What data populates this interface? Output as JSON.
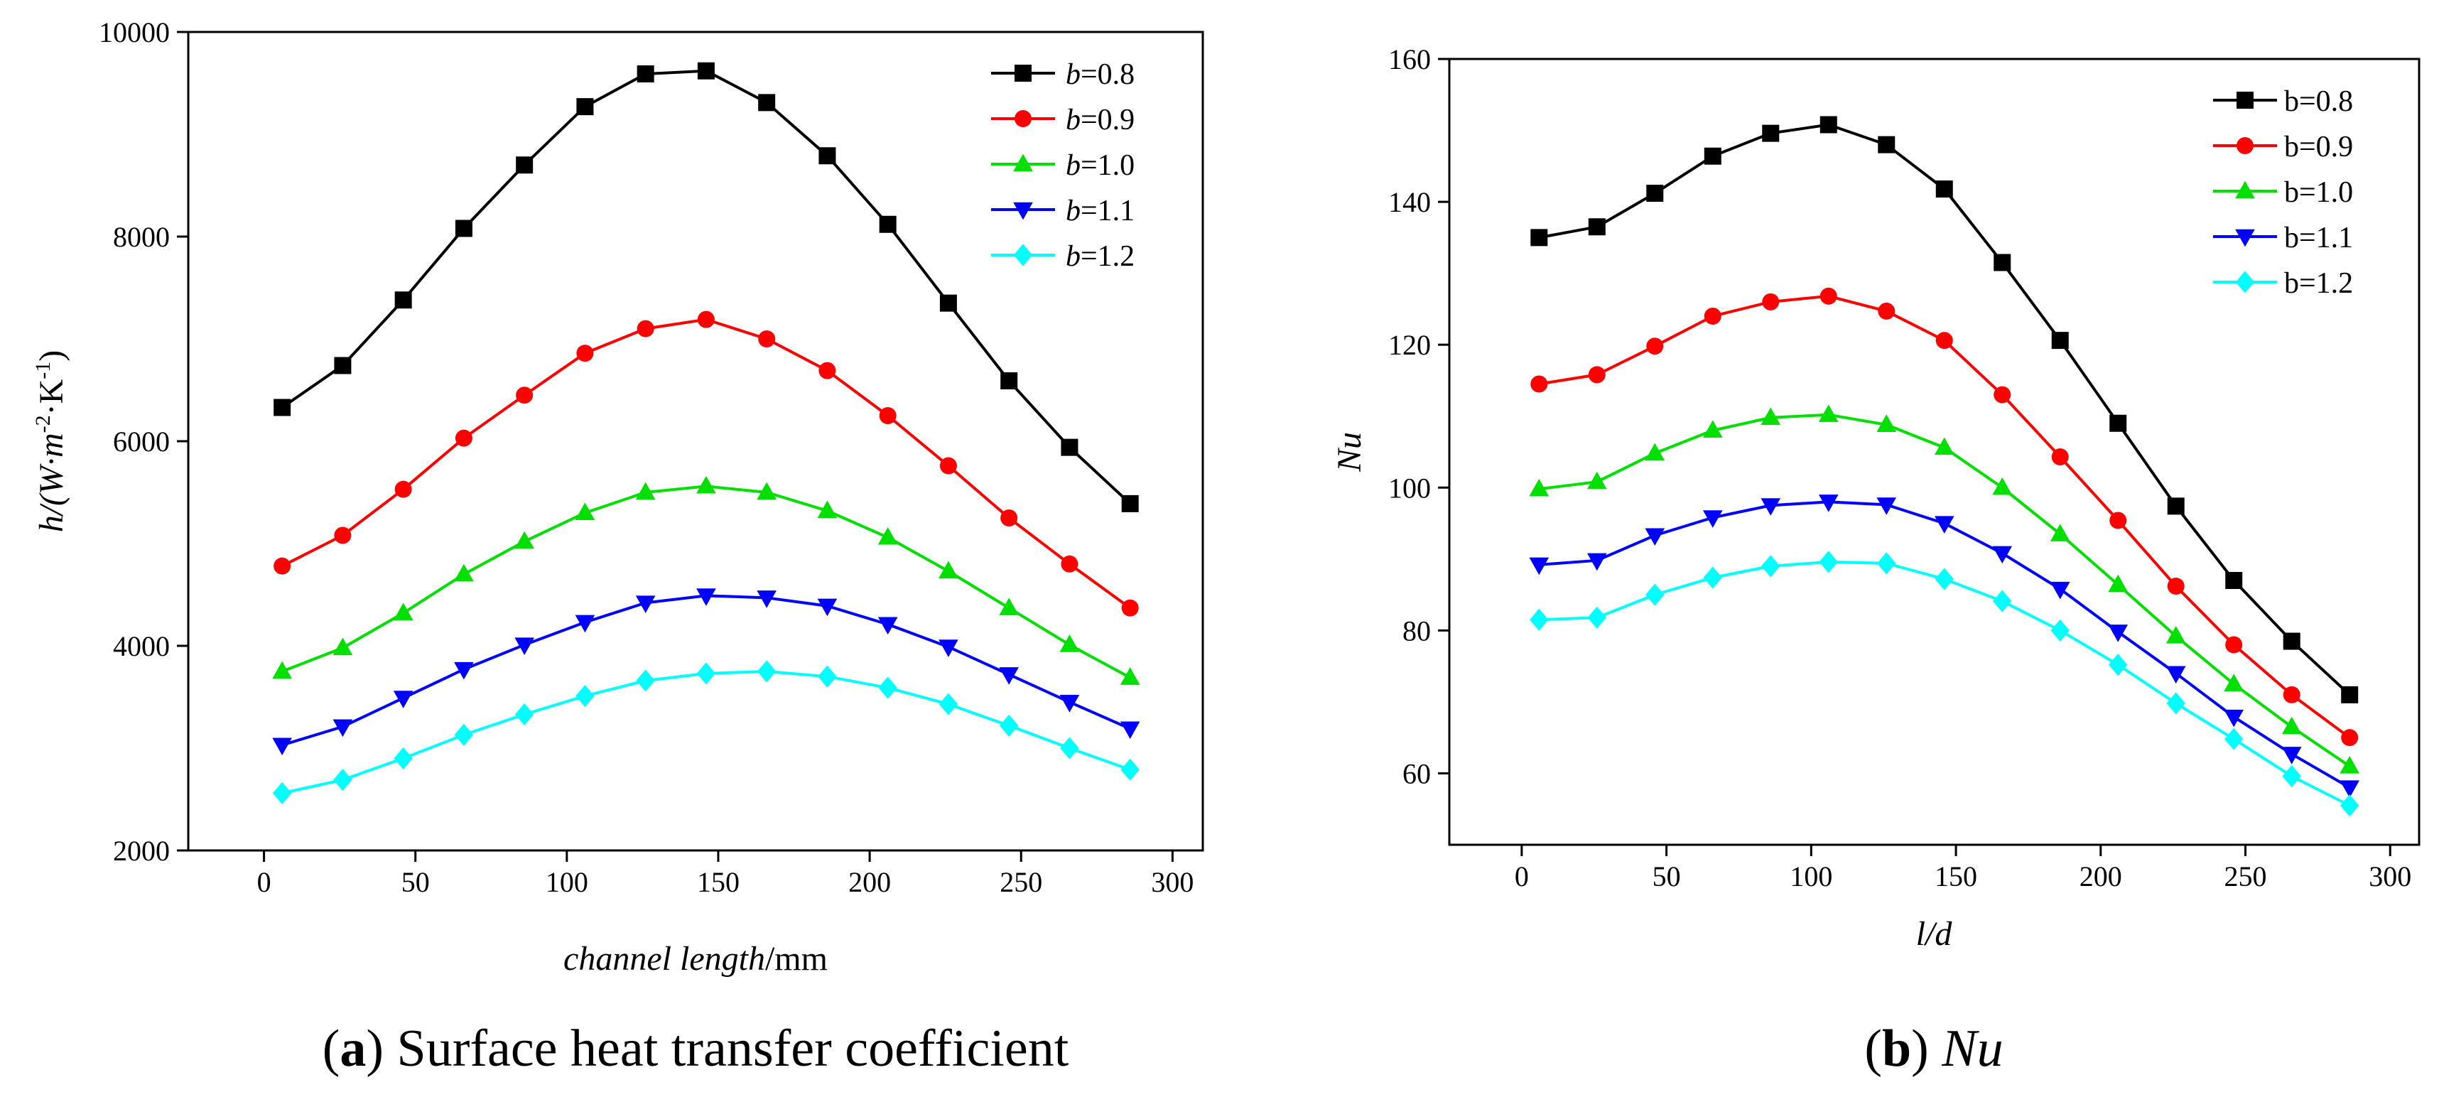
{
  "chart_data": [
    {
      "type": "line",
      "panel": "a",
      "caption": {
        "letter": "a",
        "text": "Surface heat transfer coefficient"
      },
      "xlabel": {
        "italic": "channel length",
        "unit": "/mm"
      },
      "ylabel": {
        "main": "h/(W·m",
        "sup1": "-2",
        "mid": "·K",
        "sup2": "-1",
        "end": ")"
      },
      "xlim": [
        -25,
        310
      ],
      "ylim": [
        2000,
        10000
      ],
      "xticks": [
        0,
        50,
        100,
        150,
        200,
        250,
        300
      ],
      "yticks": [
        2000,
        4000,
        6000,
        8000,
        10000
      ],
      "x": [
        6,
        26,
        46,
        66,
        86,
        106,
        126,
        146,
        166,
        186,
        206,
        226,
        246,
        266,
        286
      ],
      "series": [
        {
          "name": "b=0.8",
          "var": "b",
          "val": "=0.8",
          "color": "#000000",
          "marker": "square",
          "values": [
            6330,
            6740,
            7380,
            8080,
            8700,
            9270,
            9590,
            9620,
            9310,
            8790,
            8120,
            7350,
            6590,
            5940,
            5390
          ]
        },
        {
          "name": "b=0.9",
          "var": "b",
          "val": "=0.9",
          "color": "#ff0000",
          "marker": "circle",
          "values": [
            4780,
            5080,
            5530,
            6030,
            6450,
            6860,
            7100,
            7190,
            7000,
            6690,
            6250,
            5760,
            5250,
            4800,
            4370
          ]
        },
        {
          "name": "b=1.0",
          "var": "b",
          "val": "=1.0",
          "color": "#00e000",
          "marker": "triangle-up",
          "values": [
            3750,
            3980,
            4320,
            4700,
            5020,
            5300,
            5500,
            5560,
            5500,
            5320,
            5060,
            4730,
            4370,
            4010,
            3690
          ]
        },
        {
          "name": "b=1.1",
          "var": "b",
          "val": "=1.1",
          "color": "#0000ff",
          "marker": "triangle-down",
          "values": [
            3030,
            3210,
            3490,
            3770,
            4010,
            4230,
            4420,
            4490,
            4470,
            4390,
            4210,
            3990,
            3720,
            3450,
            3190
          ]
        },
        {
          "name": "b=1.2",
          "var": "b",
          "val": "=1.2",
          "color": "#00ffff",
          "marker": "diamond",
          "values": [
            2560,
            2690,
            2900,
            3130,
            3330,
            3510,
            3660,
            3730,
            3750,
            3700,
            3590,
            3430,
            3220,
            3000,
            2790
          ]
        }
      ]
    },
    {
      "type": "line",
      "panel": "b",
      "caption": {
        "letter": "b",
        "text": "Nu"
      },
      "xlabel": {
        "italic": "l/d",
        "unit": ""
      },
      "ylabel": {
        "main": "Nu"
      },
      "xlim": [
        -25,
        310
      ],
      "ylim": [
        50,
        160
      ],
      "xticks": [
        0,
        50,
        100,
        150,
        200,
        250,
        300
      ],
      "yticks": [
        60,
        80,
        100,
        120,
        140,
        160
      ],
      "x": [
        6,
        26,
        46,
        66,
        86,
        106,
        126,
        146,
        166,
        186,
        206,
        226,
        246,
        266,
        286
      ],
      "series": [
        {
          "name": "b=0.8",
          "color": "#000000",
          "marker": "square",
          "values": [
            135,
            136.5,
            141.2,
            146.4,
            149.6,
            150.8,
            148,
            141.8,
            131.5,
            120.6,
            109,
            97.4,
            87,
            78.5,
            71
          ]
        },
        {
          "name": "b=0.9",
          "color": "#ff0000",
          "marker": "circle",
          "values": [
            114.5,
            115.8,
            119.8,
            124,
            126,
            126.8,
            124.7,
            120.6,
            113,
            104.3,
            95.4,
            86.2,
            78,
            71,
            65
          ]
        },
        {
          "name": "b=1.0",
          "color": "#00e000",
          "marker": "triangle-up",
          "values": [
            99.8,
            100.8,
            104.8,
            108,
            109.8,
            110.2,
            108.8,
            105.6,
            100,
            93.5,
            86.4,
            79.2,
            72.5,
            66.5,
            61
          ]
        },
        {
          "name": "b=1.1",
          "color": "#0000ff",
          "marker": "triangle-down",
          "values": [
            89.2,
            89.8,
            93.3,
            95.8,
            97.5,
            98,
            97.6,
            95,
            90.8,
            85.8,
            79.8,
            74,
            67.9,
            62.7,
            58
          ]
        },
        {
          "name": "b=1.2",
          "color": "#00ffff",
          "marker": "diamond",
          "values": [
            81.5,
            81.8,
            85,
            87.4,
            89,
            89.6,
            89.4,
            87.2,
            84.1,
            80,
            75.2,
            69.8,
            64.8,
            59.6,
            55.5
          ]
        }
      ]
    }
  ]
}
